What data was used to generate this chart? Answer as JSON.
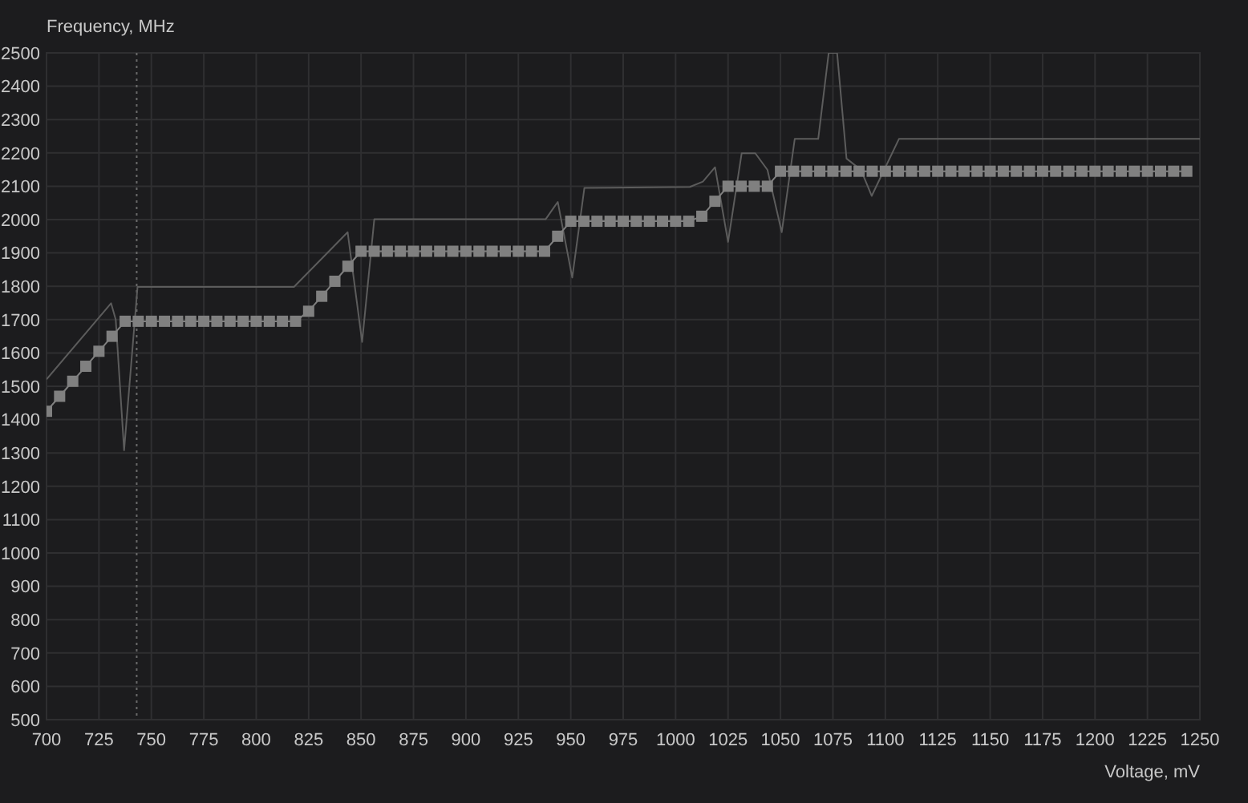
{
  "chart_data": {
    "type": "line",
    "title": "Frequency, MHz",
    "xlabel": "Voltage, mV",
    "xlim": [
      700,
      1250
    ],
    "xticks": [
      700,
      725,
      750,
      775,
      800,
      825,
      850,
      875,
      900,
      925,
      950,
      975,
      1000,
      1025,
      1050,
      1075,
      1100,
      1125,
      1150,
      1175,
      1200,
      1225,
      1250
    ],
    "ylim": [
      500,
      2500
    ],
    "yticks": [
      500,
      600,
      700,
      800,
      900,
      1000,
      1100,
      1200,
      1300,
      1400,
      1500,
      1600,
      1700,
      1800,
      1900,
      2000,
      2100,
      2200,
      2300,
      2400,
      2500
    ],
    "grid": true,
    "series": [
      {
        "color": "#5c5c5c",
        "marker": "none",
        "x": [
          700,
          730.8,
          733,
          737,
          743.4,
          818,
          843.6,
          850.5,
          856.3,
          938,
          943.8,
          950.7,
          956.5,
          1006.8,
          1013,
          1018.8,
          1025,
          1031.5,
          1038,
          1043.8,
          1050.6,
          1056.8,
          1068,
          1073,
          1077,
          1081.5,
          1088.4,
          1093.5,
          1106.5,
          1250
        ],
        "values": [
          1521,
          1749,
          1700,
          1308,
          1798,
          1798,
          1962,
          1633,
          2001,
          2001,
          2053,
          1826,
          2095,
          2098,
          2114,
          2157,
          1933,
          2199,
          2199,
          2149,
          1962,
          2242,
          2242,
          2500,
          2500,
          2183,
          2149,
          2071,
          2242,
          2242
        ]
      },
      {
        "color": "#808080",
        "marker": "square",
        "x": [
          700,
          706.25,
          712.5,
          718.75,
          725,
          731.25,
          737.5,
          743.75,
          750,
          756.25,
          762.5,
          768.75,
          775,
          781.25,
          787.5,
          793.75,
          800,
          806.25,
          812.5,
          818.75,
          825,
          831.25,
          837.5,
          843.75,
          850,
          856.25,
          862.5,
          868.75,
          875,
          881.25,
          887.5,
          893.75,
          900,
          906.25,
          912.5,
          918.75,
          925,
          931.25,
          937.5,
          943.75,
          950,
          956.25,
          962.5,
          968.75,
          975,
          981.25,
          987.5,
          993.75,
          1000,
          1006.25,
          1012.5,
          1018.75,
          1025,
          1031.25,
          1037.5,
          1043.75,
          1050,
          1056.25,
          1062.5,
          1068.75,
          1075,
          1081.25,
          1087.5,
          1093.75,
          1100,
          1106.25,
          1112.5,
          1118.75,
          1125,
          1131.25,
          1137.5,
          1143.75,
          1150,
          1156.25,
          1162.5,
          1168.75,
          1175,
          1181.25,
          1187.5,
          1193.75,
          1200,
          1206.25,
          1212.5,
          1218.75,
          1225,
          1231.25,
          1237.5,
          1243.75
        ],
        "values": [
          1425,
          1470,
          1515,
          1560,
          1605,
          1650,
          1695,
          1695,
          1695,
          1695,
          1695,
          1695,
          1695,
          1695,
          1695,
          1695,
          1695,
          1695,
          1695,
          1695,
          1725,
          1770,
          1815,
          1860,
          1905,
          1905,
          1905,
          1905,
          1905,
          1905,
          1905,
          1905,
          1905,
          1905,
          1905,
          1905,
          1905,
          1905,
          1905,
          1950,
          1995,
          1995,
          1995,
          1995,
          1995,
          1995,
          1995,
          1995,
          1995,
          1995,
          2010,
          2055,
          2100,
          2100,
          2100,
          2100,
          2145,
          2145,
          2145,
          2145,
          2145,
          2145,
          2145,
          2145,
          2145,
          2145,
          2145,
          2145,
          2145,
          2145,
          2145,
          2145,
          2145,
          2145,
          2145,
          2145,
          2145,
          2145,
          2145,
          2145,
          2145,
          2145,
          2145,
          2145,
          2145,
          2145,
          2145,
          2145
        ]
      }
    ],
    "ref_lines": [
      {
        "axis": "x",
        "value": 743,
        "color": "#6a6a6a",
        "line_style": "dotted"
      }
    ]
  }
}
